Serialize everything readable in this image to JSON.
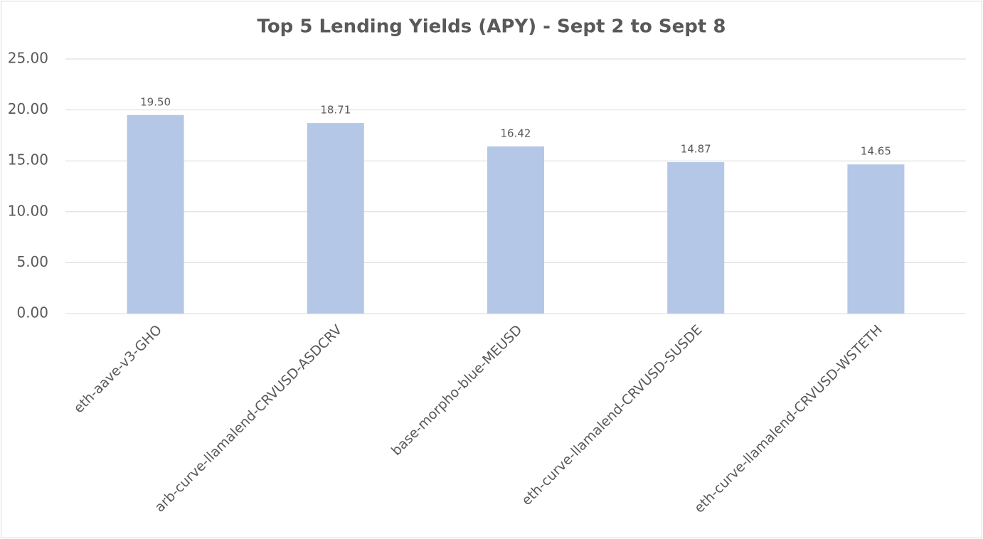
{
  "chart_data": {
    "type": "bar",
    "title": "Top 5 Lending Yields (APY) - Sept 2 to Sept 8",
    "categories": [
      "eth-aave-v3-GHO",
      "arb-curve-llamalend-CRVUSD-ASDCRV",
      "base-morpho-blue-MEUSD",
      "eth-curve-llamalend-CRVUSD-SUSDE",
      "eth-curve-llamalend-CRVUSD-WSTETH"
    ],
    "values": [
      19.5,
      18.71,
      16.42,
      14.87,
      14.65
    ],
    "value_labels": [
      "19.50",
      "18.71",
      "16.42",
      "14.87",
      "14.65"
    ],
    "color": "#b4c7e7",
    "ylim": [
      0,
      25
    ],
    "yticks": [
      {
        "value": 0,
        "label": "0.00"
      },
      {
        "value": 5,
        "label": "5.00"
      },
      {
        "value": 10,
        "label": "10.00"
      },
      {
        "value": 15,
        "label": "15.00"
      },
      {
        "value": 20,
        "label": "20.00"
      },
      {
        "value": 25,
        "label": "25.00"
      }
    ],
    "grid": true
  }
}
